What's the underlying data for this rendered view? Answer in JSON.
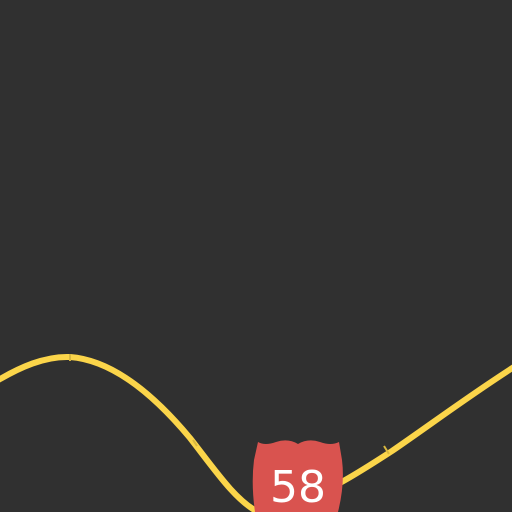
{
  "map": {
    "background_color": "#303030",
    "road_color": "#fbd54a",
    "shield_color": "#d9534f",
    "shield_text_color": "#ffffff"
  },
  "route": {
    "number": "58",
    "type": "US highway shield"
  }
}
